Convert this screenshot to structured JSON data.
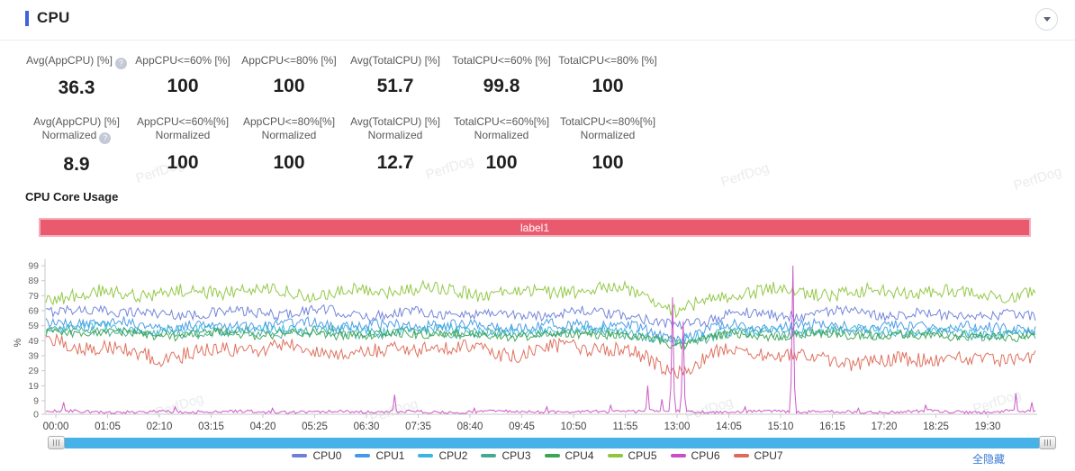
{
  "header": {
    "title": "CPU"
  },
  "watermark": "PerfDog",
  "metrics_row1": [
    {
      "label": "Avg(AppCPU) [%]",
      "value": "36.3",
      "has_help": true
    },
    {
      "label": "AppCPU<=60% [%]",
      "value": "100"
    },
    {
      "label": "AppCPU<=80% [%]",
      "value": "100"
    },
    {
      "label": "Avg(TotalCPU) [%]",
      "value": "51.7"
    },
    {
      "label": "TotalCPU<=60% [%]",
      "value": "99.8"
    },
    {
      "label": "TotalCPU<=80% [%]",
      "value": "100"
    }
  ],
  "metrics_row2": [
    {
      "label": "Avg(AppCPU) [%]",
      "label2": "Normalized",
      "value": "8.9",
      "has_help": true
    },
    {
      "label": "AppCPU<=60%[%]",
      "label2": "Normalized",
      "value": "100"
    },
    {
      "label": "AppCPU<=80%[%]",
      "label2": "Normalized",
      "value": "100"
    },
    {
      "label": "Avg(TotalCPU) [%]",
      "label2": "Normalized",
      "value": "12.7"
    },
    {
      "label": "TotalCPU<=60%[%]",
      "label2": "Normalized",
      "value": "100"
    },
    {
      "label": "TotalCPU<=80%[%]",
      "label2": "Normalized",
      "value": "100"
    }
  ],
  "section_title": "CPU Core Usage",
  "banner": {
    "text": "label1",
    "bg": "#ea5a6f",
    "border": "#f4aeba"
  },
  "hide_all_label": "全隐藏",
  "chart_data": {
    "type": "line",
    "title": "CPU Core Usage",
    "ylabel": "%",
    "ylim": [
      0,
      104
    ],
    "yticks": [
      0,
      9,
      19,
      29,
      39,
      49,
      59,
      69,
      79,
      89,
      99
    ],
    "xticks": [
      "00:00",
      "01:05",
      "02:10",
      "03:15",
      "04:20",
      "05:25",
      "06:30",
      "07:35",
      "08:40",
      "09:45",
      "10:50",
      "11:55",
      "13:00",
      "14:05",
      "15:10",
      "16:15",
      "17:20",
      "18:25",
      "19:30"
    ],
    "grid": false,
    "legend_position": "bottom",
    "series": [
      {
        "name": "CPU0",
        "color": "#6e7fd8",
        "noise": 3.5,
        "anchors": [
          68,
          70,
          66,
          68,
          67,
          69,
          66,
          68,
          67,
          66,
          68,
          67,
          58,
          67,
          66,
          68,
          67,
          66,
          65,
          66
        ]
      },
      {
        "name": "CPU1",
        "color": "#4598e8",
        "noise": 3.5,
        "anchors": [
          60,
          62,
          58,
          60,
          59,
          61,
          58,
          60,
          59,
          58,
          60,
          59,
          50,
          59,
          58,
          60,
          58,
          59,
          57,
          58
        ]
      },
      {
        "name": "CPU2",
        "color": "#38b6e0",
        "noise": 3,
        "anchors": [
          57,
          58,
          55,
          57,
          56,
          57,
          55,
          57,
          56,
          55,
          57,
          56,
          48,
          56,
          55,
          57,
          55,
          56,
          54,
          55
        ]
      },
      {
        "name": "CPU3",
        "color": "#46aa92",
        "noise": 3,
        "anchors": [
          55,
          56,
          53,
          55,
          54,
          55,
          53,
          55,
          54,
          53,
          55,
          54,
          47,
          54,
          53,
          55,
          53,
          54,
          52,
          53
        ]
      },
      {
        "name": "CPU4",
        "color": "#3ca452",
        "noise": 3,
        "anchors": [
          54,
          55,
          52,
          54,
          53,
          54,
          52,
          54,
          53,
          52,
          54,
          53,
          46,
          53,
          52,
          54,
          52,
          53,
          51,
          52
        ]
      },
      {
        "name": "CPU5",
        "color": "#8ec63f",
        "noise": 4.5,
        "anchors": [
          78,
          81,
          80,
          82,
          83,
          80,
          82,
          84,
          81,
          80,
          83,
          84,
          68,
          80,
          83,
          80,
          82,
          81,
          80,
          79
        ]
      },
      {
        "name": "CPU6",
        "color": "#c94fc4",
        "noise": 1,
        "anchors": [
          2,
          1.5,
          1.5,
          2,
          1.5,
          1.5,
          2,
          1.5,
          1.5,
          2,
          1.5,
          2,
          2,
          1.5,
          2,
          1.5,
          1.5,
          2,
          1.5,
          2
        ],
        "spikes": [
          {
            "i": 0.15,
            "v": 8
          },
          {
            "i": 2.3,
            "v": 5
          },
          {
            "i": 4.2,
            "v": 4
          },
          {
            "i": 6.55,
            "v": 13
          },
          {
            "i": 8.1,
            "v": 4
          },
          {
            "i": 9.5,
            "v": 5
          },
          {
            "i": 10.7,
            "v": 6
          },
          {
            "i": 11.44,
            "v": 19
          },
          {
            "i": 11.7,
            "v": 10
          },
          {
            "i": 11.9,
            "v": 78
          },
          {
            "i": 12.12,
            "v": 62
          },
          {
            "i": 13.3,
            "v": 5
          },
          {
            "i": 14.25,
            "v": 99
          },
          {
            "i": 15.5,
            "v": 4
          },
          {
            "i": 16.8,
            "v": 6
          },
          {
            "i": 18.55,
            "v": 14
          },
          {
            "i": 18.85,
            "v": 8
          }
        ]
      },
      {
        "name": "CPU7",
        "color": "#dd6a57",
        "noise": 5,
        "anchors": [
          48,
          44,
          38,
          42,
          45,
          43,
          40,
          45,
          43,
          40,
          46,
          42,
          28,
          44,
          40,
          36,
          34,
          38,
          35,
          40
        ]
      }
    ]
  }
}
